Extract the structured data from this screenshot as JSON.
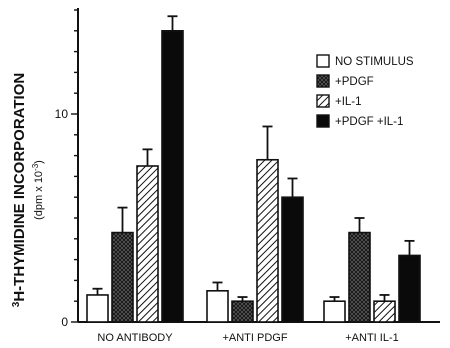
{
  "chart_data": {
    "type": "bar",
    "categories": [
      "NO ANTIBODY",
      "+ANTI PDGF",
      "+ANTI IL-1"
    ],
    "series": [
      {
        "name": "NO STIMULUS",
        "values": [
          1.3,
          1.5,
          1.0
        ],
        "errors": [
          0.3,
          0.4,
          0.2
        ],
        "pattern": "open"
      },
      {
        "name": "+PDGF",
        "values": [
          4.3,
          1.0,
          4.3
        ],
        "errors": [
          1.2,
          0.2,
          0.7
        ],
        "pattern": "crosshatch"
      },
      {
        "name": "+IL-1",
        "values": [
          7.5,
          7.8,
          1.0
        ],
        "errors": [
          0.8,
          1.6,
          0.3
        ],
        "pattern": "hatch"
      },
      {
        "name": "+PDGF +IL-1",
        "values": [
          14.0,
          6.0,
          3.2
        ],
        "errors": [
          0.7,
          0.9,
          0.7
        ],
        "pattern": "solid"
      }
    ],
    "ylabel_prefix": "3",
    "ylabel": "H-THYMIDINE INCORPORATION",
    "ylabel_units": "(dpm x 10",
    "ylabel_units_exp": "-3",
    "ylabel_units_close": ")",
    "ylim": [
      0,
      15
    ],
    "yticks": [
      0,
      10
    ],
    "ytick_labels": [
      "0",
      "10"
    ],
    "legend_position": "top-right",
    "grid": false
  }
}
